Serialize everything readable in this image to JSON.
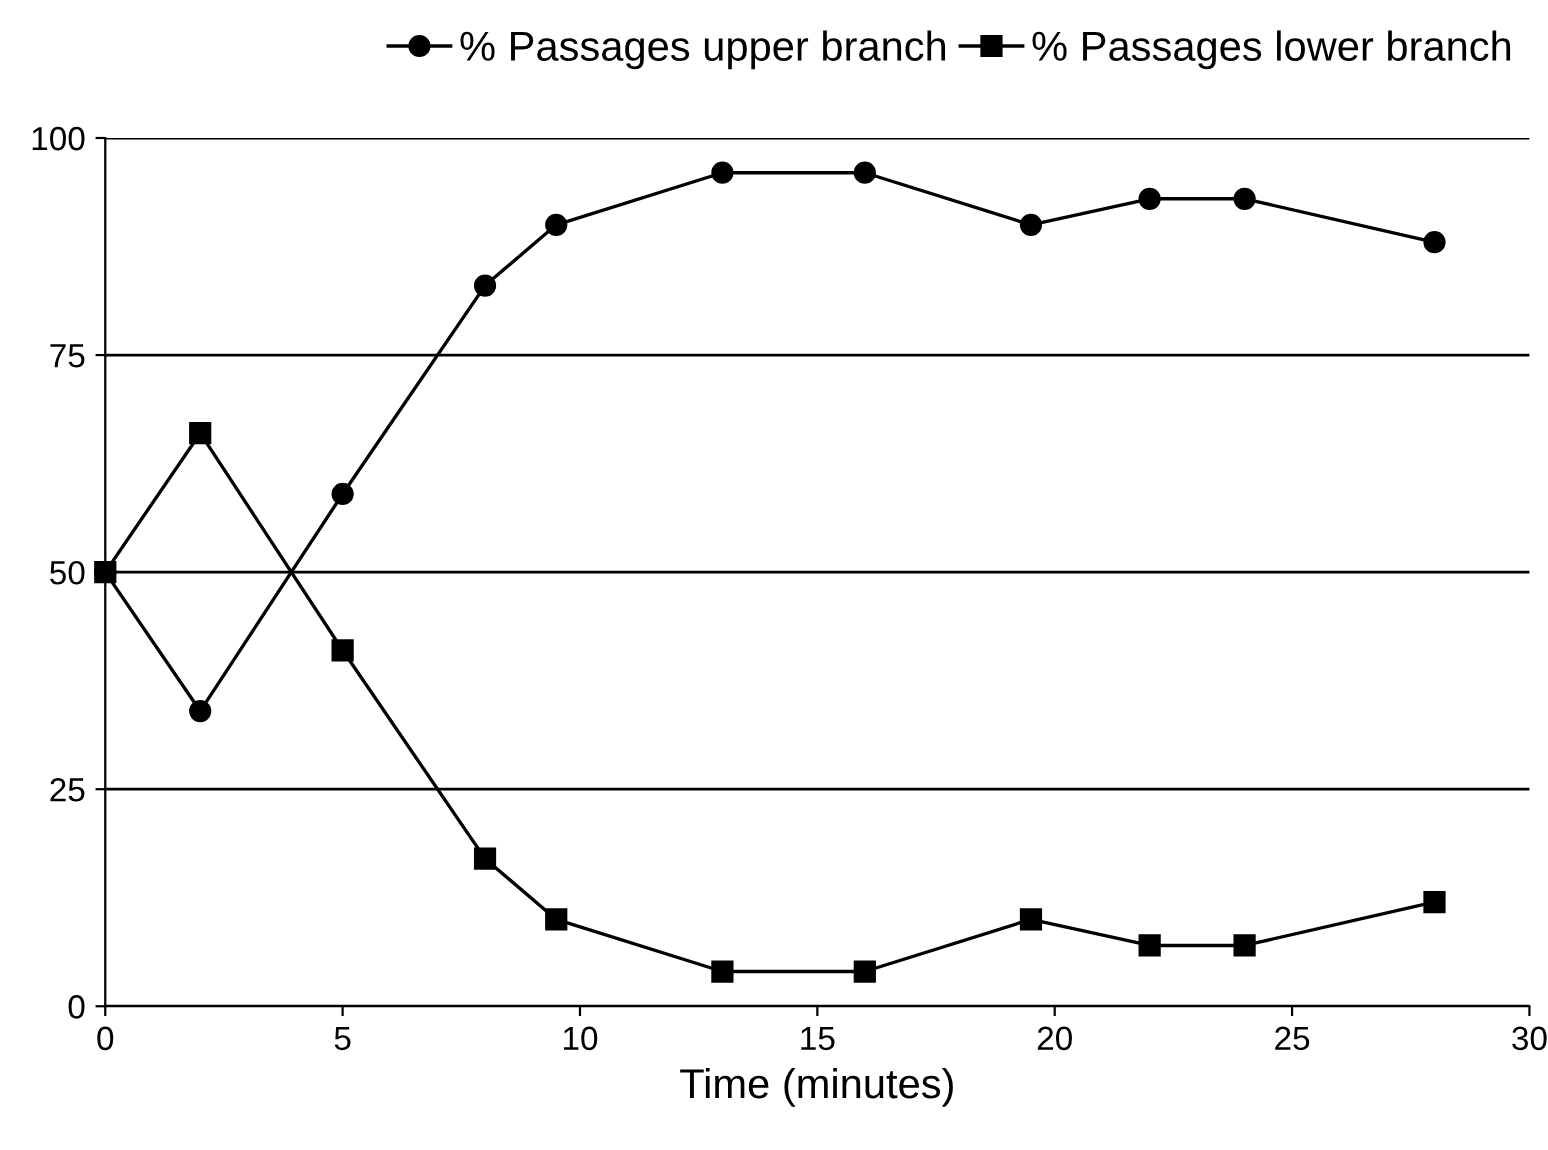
{
  "chart_data": {
    "type": "line",
    "xlabel": "Time (minutes)",
    "x": [
      0,
      2,
      5,
      8,
      9.5,
      13,
      16,
      19.5,
      22,
      24,
      28
    ],
    "series": [
      {
        "name": "% Passages upper branch",
        "color": "#000000",
        "marker": "circle",
        "values": [
          50,
          34,
          59,
          83,
          90,
          96,
          96,
          90,
          93,
          93,
          88
        ]
      },
      {
        "name": "% Passages lower branch",
        "color": "#000000",
        "marker": "square",
        "values": [
          50,
          66,
          41,
          17,
          10,
          4,
          4,
          10,
          7,
          7,
          12
        ]
      }
    ],
    "xlim": [
      0,
      30
    ],
    "xticks": [
      0,
      5,
      10,
      15,
      20,
      25,
      30
    ],
    "ylim": [
      0,
      100
    ],
    "yticks": [
      0,
      25,
      50,
      75,
      100
    ],
    "grid": "y",
    "legend": "top",
    "line_style": "solid"
  }
}
